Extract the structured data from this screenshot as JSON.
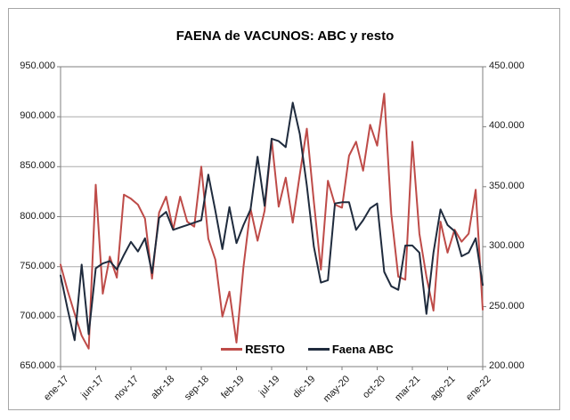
{
  "chart_data": {
    "type": "line",
    "title": "FAENA de VACUNOS: ABC y resto",
    "x_tick_every": 5,
    "x_tick_labels": [
      "ene-17",
      "jun-17",
      "nov-17",
      "abr-18",
      "sep-18",
      "feb-19",
      "jul-19",
      "dic-19",
      "may-20",
      "oct-20",
      "mar-21",
      "ago-21",
      "ene-22"
    ],
    "categories": [
      "ene-17",
      "feb-17",
      "mar-17",
      "abr-17",
      "may-17",
      "jun-17",
      "jul-17",
      "ago-17",
      "sep-17",
      "oct-17",
      "nov-17",
      "dic-17",
      "ene-18",
      "feb-18",
      "mar-18",
      "abr-18",
      "may-18",
      "jun-18",
      "jul-18",
      "ago-18",
      "sep-18",
      "oct-18",
      "nov-18",
      "dic-18",
      "ene-19",
      "feb-19",
      "mar-19",
      "abr-19",
      "may-19",
      "jun-19",
      "jul-19",
      "ago-19",
      "sep-19",
      "oct-19",
      "nov-19",
      "dic-19",
      "ene-20",
      "feb-20",
      "mar-20",
      "abr-20",
      "may-20",
      "jun-20",
      "jul-20",
      "ago-20",
      "sep-20",
      "oct-20",
      "nov-20",
      "dic-20",
      "ene-21",
      "feb-21",
      "mar-21",
      "abr-21",
      "may-21",
      "jun-21",
      "jul-21",
      "ago-21",
      "sep-21",
      "oct-21",
      "nov-21",
      "dic-21",
      "ene-22"
    ],
    "left_axis": {
      "min": 650000,
      "max": 950000,
      "tick_values": [
        950000,
        900000,
        850000,
        800000,
        750000,
        700000,
        650000
      ],
      "ticks": [
        "950.000",
        "900.000",
        "850.000",
        "800.000",
        "750.000",
        "700.000",
        "650.000"
      ]
    },
    "right_axis": {
      "min": 200000,
      "max": 450000,
      "tick_values": [
        450000,
        400000,
        350000,
        300000,
        250000,
        200000
      ],
      "ticks": [
        "450.000",
        "400.000",
        "350.000",
        "300.000",
        "250.000",
        "200.000"
      ]
    },
    "grid": true,
    "legend_position": "bottom-inside",
    "series": [
      {
        "name": "RESTO",
        "axis": "left",
        "color": "#BE4B48",
        "values": [
          752000,
          726000,
          703000,
          681000,
          668000,
          832000,
          723000,
          760000,
          739000,
          822000,
          818000,
          812000,
          798000,
          738000,
          804000,
          820000,
          787000,
          820000,
          795000,
          790000,
          850000,
          778000,
          757000,
          700000,
          725000,
          674000,
          750000,
          808000,
          776000,
          806000,
          877000,
          810000,
          839000,
          794000,
          842000,
          888000,
          815000,
          747000,
          836000,
          812000,
          809000,
          861000,
          875000,
          846000,
          892000,
          871000,
          923000,
          803000,
          740000,
          737000,
          875000,
          783000,
          740000,
          706000,
          795000,
          764000,
          787000,
          775000,
          783000,
          827000,
          707000
        ]
      },
      {
        "name": "Faena ABC",
        "axis": "right",
        "color": "#1F2B3D",
        "values": [
          276000,
          248000,
          222000,
          285000,
          227000,
          282000,
          286000,
          288000,
          281000,
          293000,
          304000,
          296000,
          307000,
          278000,
          324000,
          329000,
          314000,
          316000,
          318000,
          320000,
          322000,
          360000,
          330000,
          298000,
          333000,
          303000,
          318000,
          331000,
          375000,
          334000,
          390000,
          388000,
          383000,
          420000,
          394000,
          351000,
          300000,
          270000,
          272000,
          336000,
          337000,
          337000,
          314000,
          322000,
          332000,
          336000,
          279000,
          267000,
          264000,
          301000,
          301000,
          295000,
          244000,
          295000,
          331000,
          318000,
          313000,
          292000,
          295000,
          307000,
          268000
        ]
      }
    ]
  }
}
